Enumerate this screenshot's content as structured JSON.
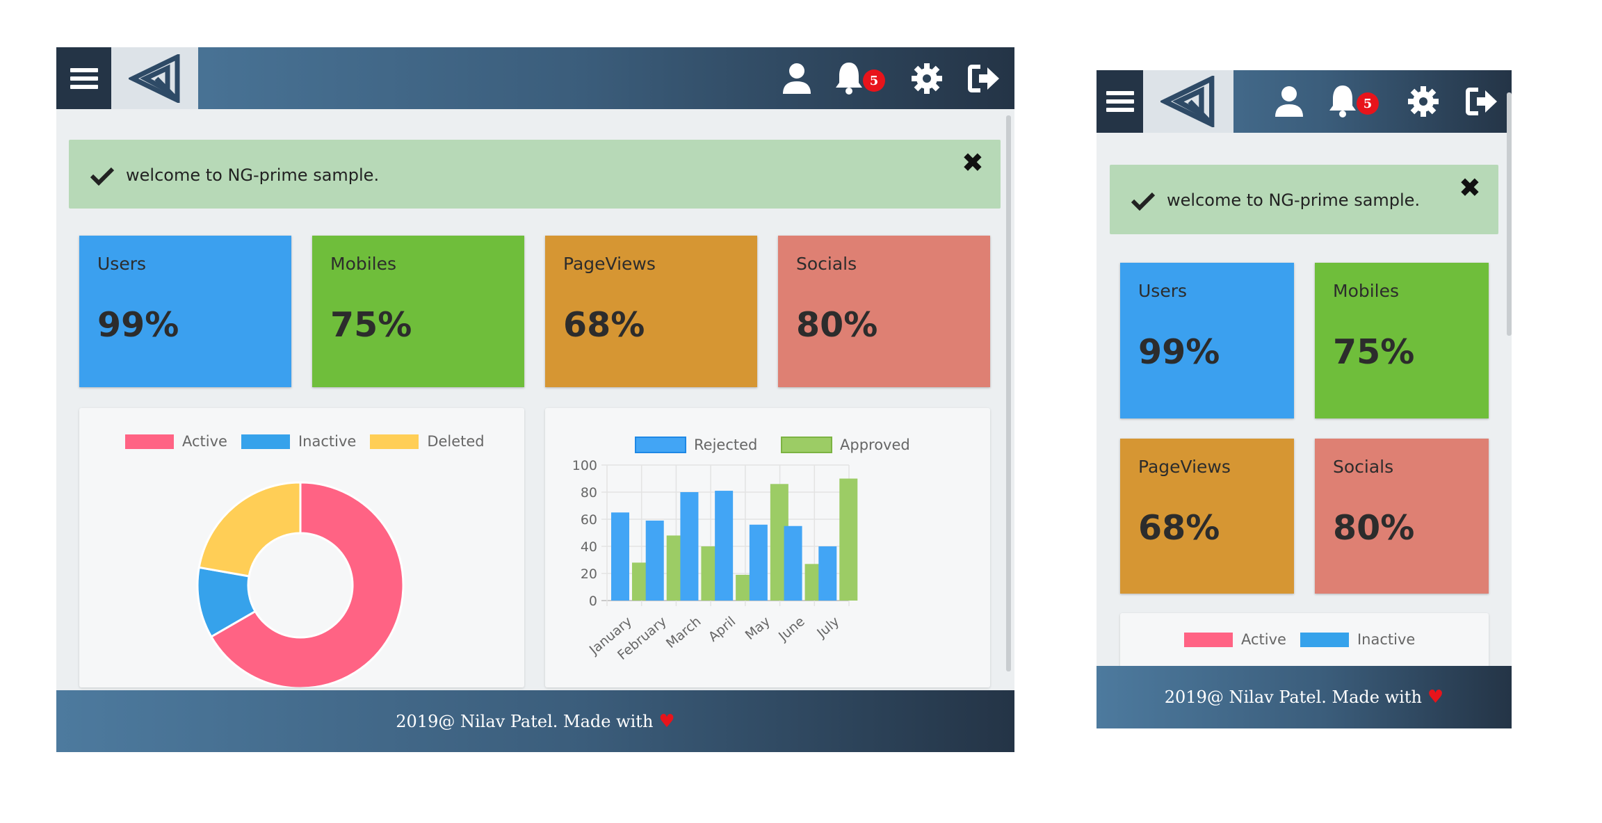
{
  "alert": {
    "message": "welcome to NG-prime sample.",
    "close": "✖"
  },
  "header": {
    "notification_count": "5"
  },
  "stats": [
    {
      "label": "Users",
      "value": "99%",
      "color": "#3ba0ef"
    },
    {
      "label": "Mobiles",
      "value": "75%",
      "color": "#6fbe3b"
    },
    {
      "label": "PageViews",
      "value": "68%",
      "color": "#d69633"
    },
    {
      "label": "Socials",
      "value": "80%",
      "color": "#de8073"
    }
  ],
  "footer": {
    "text": "2019@ Nilav Patel. Made with",
    "heart": "♥"
  },
  "chart_data": [
    {
      "type": "pie",
      "variant": "doughnut",
      "legend_position": "top",
      "labels": [
        "Active",
        "Inactive",
        "Deleted"
      ],
      "values": [
        300,
        50,
        100
      ],
      "colors": [
        "#ff6384",
        "#36a2eb",
        "#ffce56"
      ]
    },
    {
      "type": "bar",
      "legend_position": "top",
      "grid": true,
      "categories": [
        "January",
        "February",
        "March",
        "April",
        "May",
        "June",
        "July"
      ],
      "series": [
        {
          "name": "Rejected",
          "values": [
            65,
            59,
            80,
            81,
            56,
            55,
            40
          ],
          "color": "#42a5f5"
        },
        {
          "name": "Approved",
          "values": [
            28,
            48,
            40,
            19,
            86,
            27,
            90
          ],
          "color": "#9ccc65"
        }
      ],
      "ylim": [
        0,
        100
      ],
      "yticks": [
        "0",
        "20",
        "40",
        "60",
        "80",
        "100"
      ]
    }
  ]
}
